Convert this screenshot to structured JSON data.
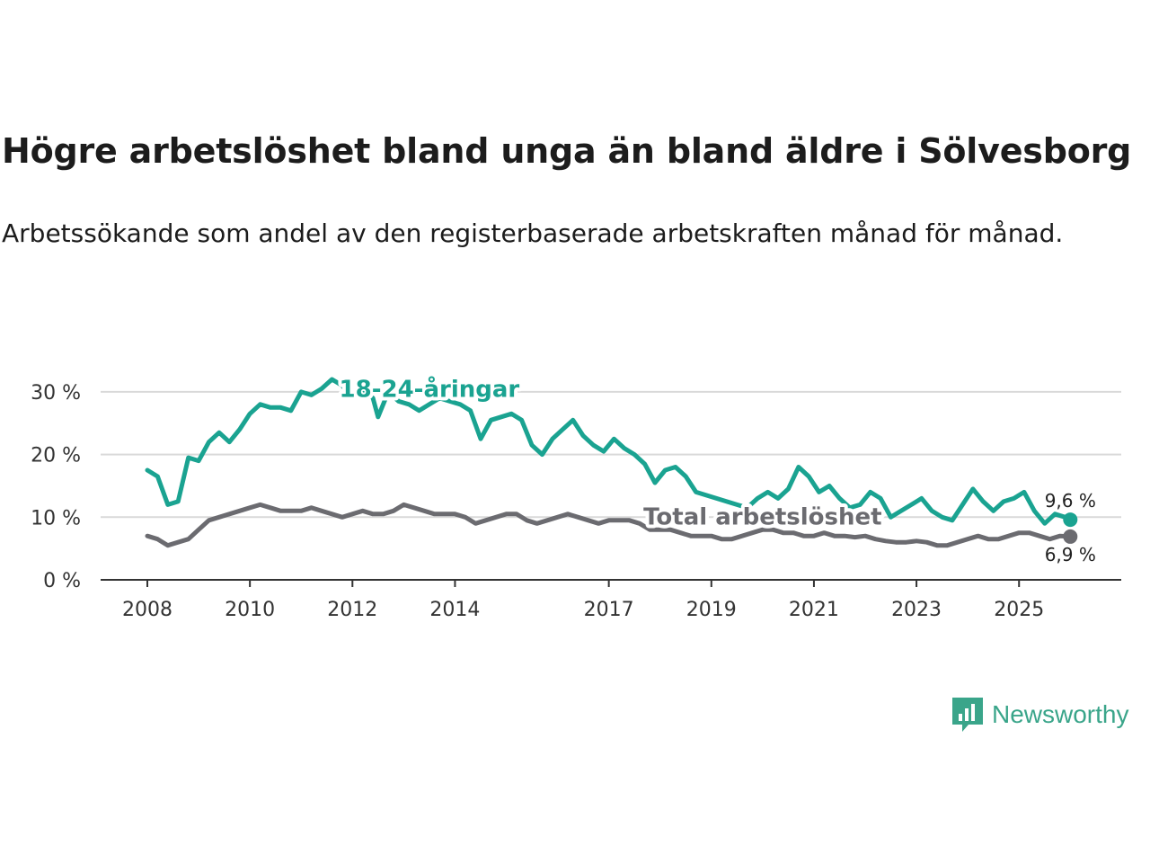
{
  "title": "Högre arbetslöshet bland unga än bland äldre i Sölvesborg",
  "subtitle": "Arbetssökande som andel av den registerbaserade arbetskraften månad för månad.",
  "brand": "Newsworthy",
  "chart_data": {
    "type": "line",
    "title": "Högre arbetslöshet bland unga än bland äldre i Sölvesborg",
    "xlabel": "",
    "ylabel": "",
    "xlim": [
      2008,
      2026.1
    ],
    "ylim": [
      0,
      33
    ],
    "grid": true,
    "x_ticks": [
      {
        "value": 2008,
        "label": "2008"
      },
      {
        "value": 2010,
        "label": "2010"
      },
      {
        "value": 2012,
        "label": "2012"
      },
      {
        "value": 2014,
        "label": "2014"
      },
      {
        "value": 2017,
        "label": "2017"
      },
      {
        "value": 2019,
        "label": "2019"
      },
      {
        "value": 2021,
        "label": "2021"
      },
      {
        "value": 2023,
        "label": "2023"
      },
      {
        "value": 2025,
        "label": "2025"
      }
    ],
    "y_ticks": [
      {
        "value": 0,
        "label": "0 %"
      },
      {
        "value": 10,
        "label": "10 %"
      },
      {
        "value": 20,
        "label": "20 %"
      },
      {
        "value": 30,
        "label": "30 %"
      }
    ],
    "series": [
      {
        "name": "18-24-åringar",
        "color": "#1aa391",
        "end_label": "9,6 %",
        "points": [
          [
            2008.0,
            17.5
          ],
          [
            2008.2,
            16.5
          ],
          [
            2008.4,
            12.0
          ],
          [
            2008.6,
            12.5
          ],
          [
            2008.8,
            19.5
          ],
          [
            2009.0,
            19.0
          ],
          [
            2009.2,
            22.0
          ],
          [
            2009.4,
            23.5
          ],
          [
            2009.6,
            22.0
          ],
          [
            2009.8,
            24.0
          ],
          [
            2010.0,
            26.5
          ],
          [
            2010.2,
            28.0
          ],
          [
            2010.4,
            27.5
          ],
          [
            2010.6,
            27.5
          ],
          [
            2010.8,
            27.0
          ],
          [
            2011.0,
            30.0
          ],
          [
            2011.2,
            29.5
          ],
          [
            2011.4,
            30.5
          ],
          [
            2011.6,
            32.0
          ],
          [
            2011.8,
            31.0
          ],
          [
            2012.0,
            29.0
          ],
          [
            2012.2,
            30.5
          ],
          [
            2012.4,
            29.0
          ],
          [
            2012.5,
            26.0
          ],
          [
            2012.7,
            30.0
          ],
          [
            2012.9,
            28.5
          ],
          [
            2013.1,
            28.0
          ],
          [
            2013.3,
            27.0
          ],
          [
            2013.5,
            28.0
          ],
          [
            2013.7,
            29.0
          ],
          [
            2013.9,
            28.5
          ],
          [
            2014.1,
            28.0
          ],
          [
            2014.3,
            27.0
          ],
          [
            2014.5,
            22.5
          ],
          [
            2014.7,
            25.5
          ],
          [
            2014.9,
            26.0
          ],
          [
            2015.1,
            26.5
          ],
          [
            2015.3,
            25.5
          ],
          [
            2015.5,
            21.5
          ],
          [
            2015.7,
            20.0
          ],
          [
            2015.9,
            22.5
          ],
          [
            2016.1,
            24.0
          ],
          [
            2016.3,
            25.5
          ],
          [
            2016.5,
            23.0
          ],
          [
            2016.7,
            21.5
          ],
          [
            2016.9,
            20.5
          ],
          [
            2017.1,
            22.5
          ],
          [
            2017.3,
            21.0
          ],
          [
            2017.5,
            20.0
          ],
          [
            2017.7,
            18.5
          ],
          [
            2017.9,
            15.5
          ],
          [
            2018.1,
            17.5
          ],
          [
            2018.3,
            18.0
          ],
          [
            2018.5,
            16.5
          ],
          [
            2018.7,
            14.0
          ],
          [
            2018.9,
            13.5
          ],
          [
            2019.1,
            13.0
          ],
          [
            2019.3,
            12.5
          ],
          [
            2019.5,
            12.0
          ],
          [
            2019.7,
            11.5
          ],
          [
            2019.9,
            13.0
          ],
          [
            2020.1,
            14.0
          ],
          [
            2020.3,
            13.0
          ],
          [
            2020.5,
            14.5
          ],
          [
            2020.7,
            18.0
          ],
          [
            2020.9,
            16.5
          ],
          [
            2021.1,
            14.0
          ],
          [
            2021.3,
            15.0
          ],
          [
            2021.5,
            13.0
          ],
          [
            2021.7,
            11.5
          ],
          [
            2021.9,
            12.0
          ],
          [
            2022.1,
            14.0
          ],
          [
            2022.3,
            13.0
          ],
          [
            2022.5,
            10.0
          ],
          [
            2022.7,
            11.0
          ],
          [
            2022.9,
            12.0
          ],
          [
            2023.1,
            13.0
          ],
          [
            2023.3,
            11.0
          ],
          [
            2023.5,
            10.0
          ],
          [
            2023.7,
            9.5
          ],
          [
            2023.9,
            12.0
          ],
          [
            2024.1,
            14.5
          ],
          [
            2024.3,
            12.5
          ],
          [
            2024.5,
            11.0
          ],
          [
            2024.7,
            12.5
          ],
          [
            2024.9,
            13.0
          ],
          [
            2025.1,
            14.0
          ],
          [
            2025.3,
            11.0
          ],
          [
            2025.5,
            9.0
          ],
          [
            2025.7,
            10.5
          ],
          [
            2025.9,
            10.0
          ],
          [
            2026.0,
            9.6
          ]
        ]
      },
      {
        "name": "Total arbetslöshet",
        "color": "#6b6b70",
        "end_label": "6,9 %",
        "points": [
          [
            2008.0,
            7.0
          ],
          [
            2008.2,
            6.5
          ],
          [
            2008.4,
            5.5
          ],
          [
            2008.6,
            6.0
          ],
          [
            2008.8,
            6.5
          ],
          [
            2009.0,
            8.0
          ],
          [
            2009.2,
            9.5
          ],
          [
            2009.4,
            10.0
          ],
          [
            2009.6,
            10.5
          ],
          [
            2009.8,
            11.0
          ],
          [
            2010.0,
            11.5
          ],
          [
            2010.2,
            12.0
          ],
          [
            2010.4,
            11.5
          ],
          [
            2010.6,
            11.0
          ],
          [
            2010.8,
            11.0
          ],
          [
            2011.0,
            11.0
          ],
          [
            2011.2,
            11.5
          ],
          [
            2011.4,
            11.0
          ],
          [
            2011.6,
            10.5
          ],
          [
            2011.8,
            10.0
          ],
          [
            2012.0,
            10.5
          ],
          [
            2012.2,
            11.0
          ],
          [
            2012.4,
            10.5
          ],
          [
            2012.6,
            10.5
          ],
          [
            2012.8,
            11.0
          ],
          [
            2013.0,
            12.0
          ],
          [
            2013.2,
            11.5
          ],
          [
            2013.4,
            11.0
          ],
          [
            2013.6,
            10.5
          ],
          [
            2013.8,
            10.5
          ],
          [
            2014.0,
            10.5
          ],
          [
            2014.2,
            10.0
          ],
          [
            2014.4,
            9.0
          ],
          [
            2014.6,
            9.5
          ],
          [
            2014.8,
            10.0
          ],
          [
            2015.0,
            10.5
          ],
          [
            2015.2,
            10.5
          ],
          [
            2015.4,
            9.5
          ],
          [
            2015.6,
            9.0
          ],
          [
            2015.8,
            9.5
          ],
          [
            2016.0,
            10.0
          ],
          [
            2016.2,
            10.5
          ],
          [
            2016.4,
            10.0
          ],
          [
            2016.6,
            9.5
          ],
          [
            2016.8,
            9.0
          ],
          [
            2017.0,
            9.5
          ],
          [
            2017.2,
            9.5
          ],
          [
            2017.4,
            9.5
          ],
          [
            2017.6,
            9.0
          ],
          [
            2017.8,
            8.0
          ],
          [
            2018.0,
            8.0
          ],
          [
            2018.2,
            8.0
          ],
          [
            2018.4,
            7.5
          ],
          [
            2018.6,
            7.0
          ],
          [
            2018.8,
            7.0
          ],
          [
            2019.0,
            7.0
          ],
          [
            2019.2,
            6.5
          ],
          [
            2019.4,
            6.5
          ],
          [
            2019.6,
            7.0
          ],
          [
            2019.8,
            7.5
          ],
          [
            2020.0,
            8.0
          ],
          [
            2020.2,
            8.0
          ],
          [
            2020.4,
            7.5
          ],
          [
            2020.6,
            7.5
          ],
          [
            2020.8,
            7.0
          ],
          [
            2021.0,
            7.0
          ],
          [
            2021.2,
            7.5
          ],
          [
            2021.4,
            7.0
          ],
          [
            2021.6,
            7.0
          ],
          [
            2021.8,
            6.8
          ],
          [
            2022.0,
            7.0
          ],
          [
            2022.2,
            6.5
          ],
          [
            2022.4,
            6.2
          ],
          [
            2022.6,
            6.0
          ],
          [
            2022.8,
            6.0
          ],
          [
            2023.0,
            6.2
          ],
          [
            2023.2,
            6.0
          ],
          [
            2023.4,
            5.5
          ],
          [
            2023.6,
            5.5
          ],
          [
            2023.8,
            6.0
          ],
          [
            2024.0,
            6.5
          ],
          [
            2024.2,
            7.0
          ],
          [
            2024.4,
            6.5
          ],
          [
            2024.6,
            6.5
          ],
          [
            2024.8,
            7.0
          ],
          [
            2025.0,
            7.5
          ],
          [
            2025.2,
            7.5
          ],
          [
            2025.4,
            7.0
          ],
          [
            2025.6,
            6.5
          ],
          [
            2025.8,
            7.0
          ],
          [
            2026.0,
            6.9
          ]
        ]
      }
    ]
  }
}
